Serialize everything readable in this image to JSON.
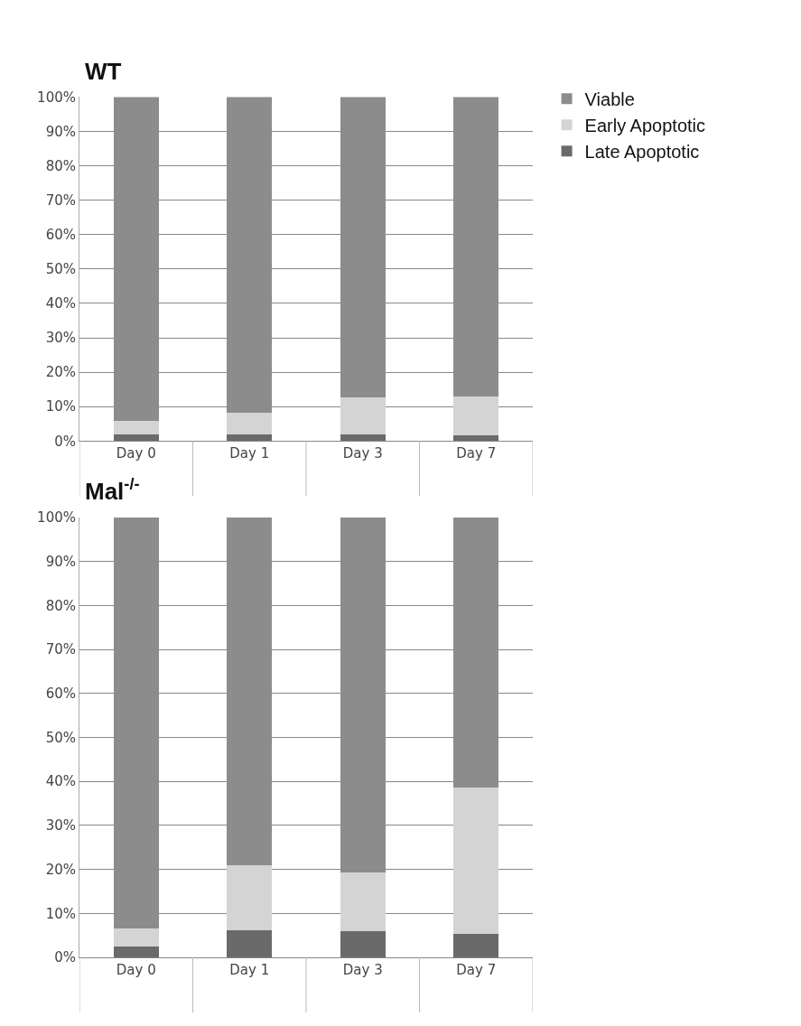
{
  "chart_data": [
    {
      "type": "bar",
      "title": "WT",
      "categories": [
        "Day 0",
        "Day 1",
        "Day 3",
        "Day 7"
      ],
      "stacked": true,
      "grid": "y",
      "legend": "top right",
      "ylim": [
        0,
        100
      ],
      "yticks": [
        {
          "value": 0,
          "label": "0%"
        },
        {
          "value": 10,
          "label": "10%"
        },
        {
          "value": 20,
          "label": "20%"
        },
        {
          "value": 30,
          "label": "30%"
        },
        {
          "value": 40,
          "label": "40%"
        },
        {
          "value": 50,
          "label": "50%"
        },
        {
          "value": 60,
          "label": "60%"
        },
        {
          "value": 70,
          "label": "70%"
        },
        {
          "value": 80,
          "label": "80%"
        },
        {
          "value": 90,
          "label": "90%"
        },
        {
          "value": 100,
          "label": "100%"
        }
      ],
      "series": [
        {
          "name": "Late Apoptotic",
          "color": "#6a6a6a",
          "values": [
            1.8,
            1.8,
            1.8,
            1.6
          ]
        },
        {
          "name": "Early Apoptotic",
          "color": "#d4d4d4",
          "values": [
            4.1,
            6.5,
            10.9,
            11.4
          ]
        },
        {
          "name": "Viable",
          "color": "#8c8c8c",
          "values": [
            94.1,
            91.7,
            87.3,
            87.0
          ]
        }
      ]
    },
    {
      "type": "bar",
      "title": "Mal$^{-/-}$",
      "categories": [
        "Day 0",
        "Day 1",
        "Day 3",
        "Day 7"
      ],
      "stacked": true,
      "grid": "y",
      "ylim": [
        0,
        100
      ],
      "yticks": [
        {
          "value": 0,
          "label": "0%"
        },
        {
          "value": 10,
          "label": "10%"
        },
        {
          "value": 20,
          "label": "20%"
        },
        {
          "value": 30,
          "label": "30%"
        },
        {
          "value": 40,
          "label": "40%"
        },
        {
          "value": 50,
          "label": "50%"
        },
        {
          "value": 60,
          "label": "60%"
        },
        {
          "value": 70,
          "label": "70%"
        },
        {
          "value": 80,
          "label": "80%"
        },
        {
          "value": 90,
          "label": "90%"
        },
        {
          "value": 100,
          "label": "100%"
        }
      ],
      "series": [
        {
          "color": "#6a6a6a",
          "values": [
            2.5,
            6.2,
            5.9,
            5.4
          ]
        },
        {
          "color": "#d4d4d4",
          "values": [
            4.0,
            14.8,
            13.4,
            33.2
          ]
        },
        {
          "color": "#8c8c8c",
          "values": [
            93.5,
            79.0,
            80.7,
            61.4
          ]
        }
      ]
    }
  ]
}
